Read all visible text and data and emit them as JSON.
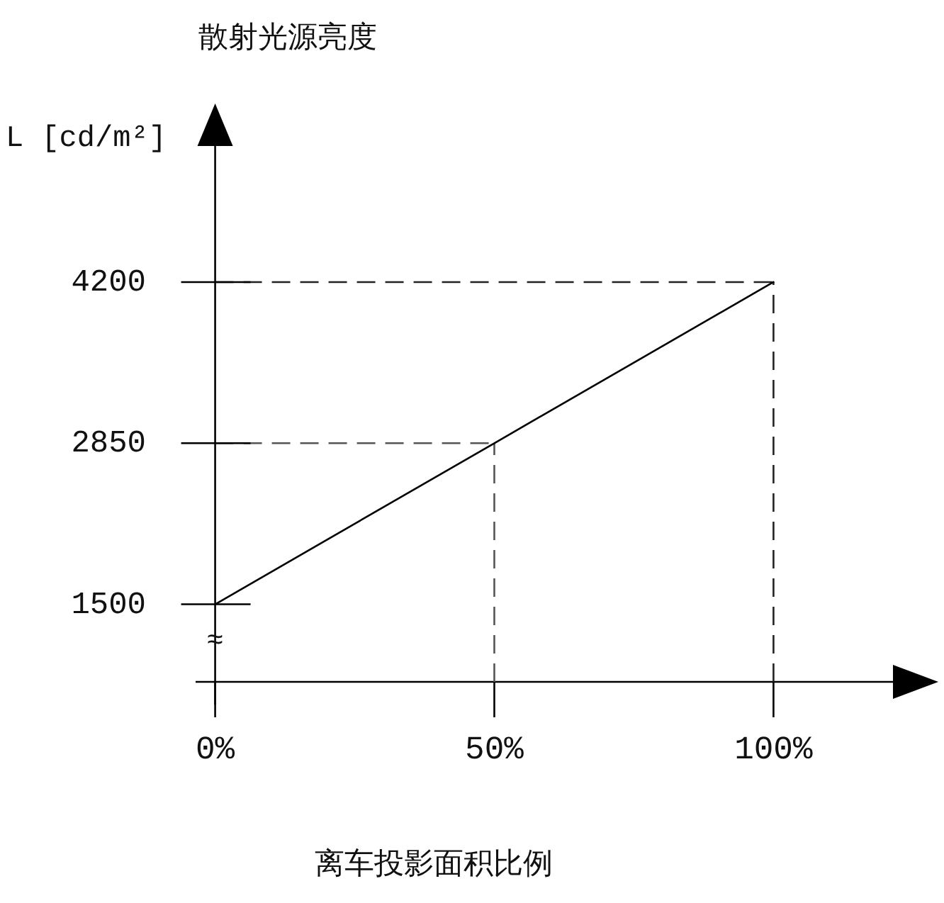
{
  "chart_data": {
    "type": "line",
    "title": "散射光源亮度",
    "ylabel": "L [cd/m²]",
    "xlabel": "离车投影面积比例",
    "x": [
      0,
      50,
      100
    ],
    "series": [
      {
        "color": "#000000",
        "values": [
          1500,
          2850,
          4200
        ]
      }
    ],
    "xlim": [
      -3.5,
      121.4
    ],
    "ylim": [
      850,
      5340
    ],
    "xticks": [
      {
        "value": 0,
        "label": "0%"
      },
      {
        "value": 50,
        "label": "50%"
      },
      {
        "value": 100,
        "label": "100%"
      }
    ],
    "yticks": [
      1500,
      2850,
      4200
    ],
    "ref_lines": [
      {
        "axis": "y",
        "value": 4200,
        "line_style": "dashed",
        "color": "#222222"
      },
      {
        "axis": "y",
        "value": 2850,
        "line_style": "dashed",
        "color": "#555555"
      },
      {
        "axis": "x",
        "value": 50,
        "line_style": "dashed",
        "color": "#555555"
      },
      {
        "axis": "x",
        "value": 100,
        "line_style": "dashed",
        "color": "#222222"
      }
    ],
    "annotations": [
      "≈"
    ]
  }
}
